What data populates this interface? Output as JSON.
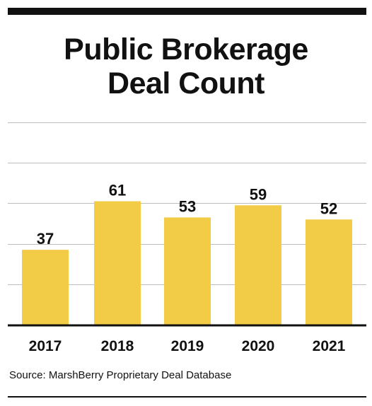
{
  "chart_data": {
    "type": "bar",
    "title_lines": [
      "Public Brokerage",
      "Deal Count"
    ],
    "categories": [
      "2017",
      "2018",
      "2019",
      "2020",
      "2021"
    ],
    "values": [
      37,
      61,
      53,
      59,
      52
    ],
    "data_labels": [
      "37",
      "61",
      "53",
      "59",
      "52"
    ],
    "xlabel": "",
    "ylabel": "",
    "ylim": [
      0,
      100
    ],
    "y_gridlines": [
      0,
      20,
      40,
      60,
      80,
      100
    ],
    "grid": true,
    "legend": "none",
    "bar_color": "#F2CB47",
    "axis_color": "#111111",
    "grid_color": "#BDBDBD"
  },
  "source": "Source: MarshBerry Proprietary Deal Database"
}
